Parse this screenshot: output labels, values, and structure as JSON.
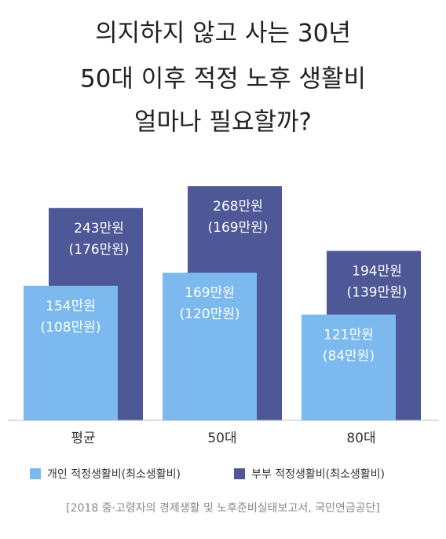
{
  "chart_data": {
    "type": "bar",
    "title": [
      "의지하지 않고 사는 30년",
      "50대 이후 적정 노후 생활비",
      "얼마나 필요할까?"
    ],
    "categories": [
      "평균",
      "50대",
      "80대"
    ],
    "series": [
      {
        "name": "개인 적정생활비(최소생활비)",
        "color": "#7cb9ee",
        "values": [
          154,
          169,
          121
        ],
        "value_labels": [
          "154만원",
          "169만원",
          "121만원"
        ],
        "min_labels": [
          "(108만원)",
          "(120만원)",
          "(84만원)"
        ]
      },
      {
        "name": "부부 적정생활비(최소생활비)",
        "color": "#4e5896",
        "values": [
          243,
          268,
          194
        ],
        "value_labels": [
          "243만원",
          "268만원",
          "194만원"
        ],
        "min_labels": [
          "(176만원)",
          "(169만원)",
          "(139만원)"
        ]
      }
    ],
    "source": "[2018 중·고령자의 경제생활 및 노후준비실태보고서, 국민연금공단]"
  }
}
